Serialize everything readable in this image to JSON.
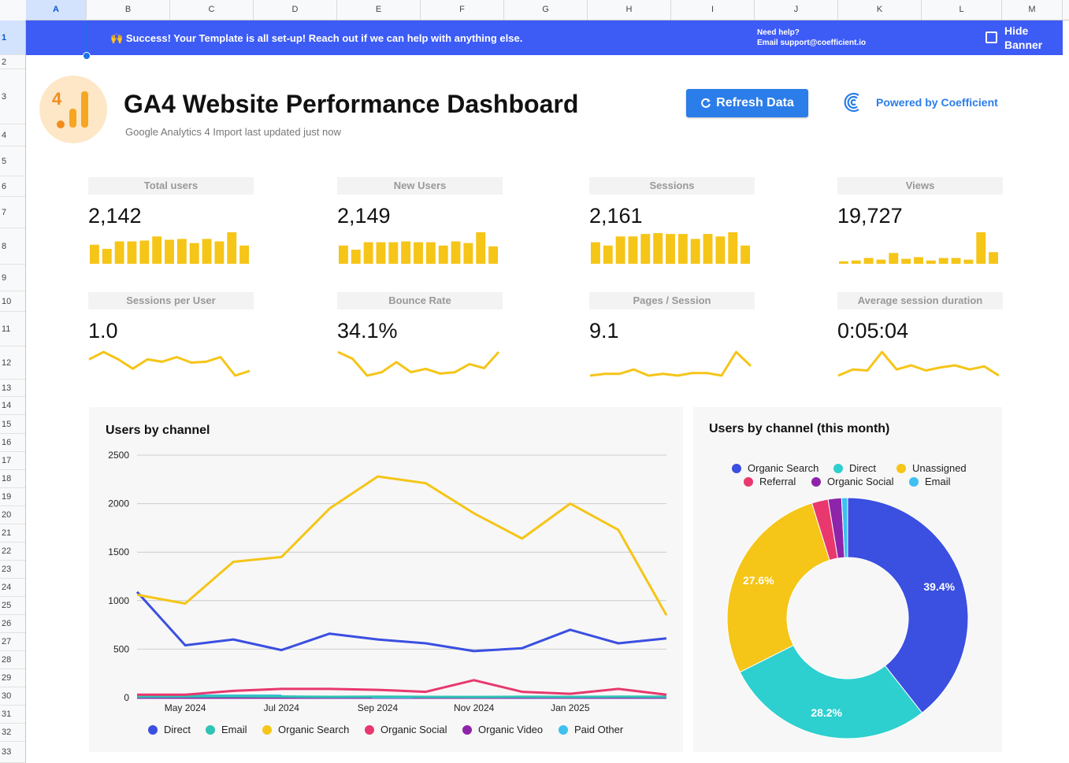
{
  "sheet": {
    "columns": [
      "A",
      "B",
      "C",
      "D",
      "E",
      "F",
      "G",
      "H",
      "I",
      "J",
      "K",
      "L",
      "M"
    ],
    "rows": [
      "1",
      "2",
      "3",
      "4",
      "5",
      "6",
      "7",
      "8",
      "9",
      "10",
      "11",
      "12",
      "13",
      "14",
      "15",
      "16",
      "17",
      "18",
      "19",
      "20",
      "21",
      "22",
      "23",
      "24",
      "25",
      "26",
      "27",
      "28",
      "29",
      "30",
      "31",
      "32",
      "33"
    ]
  },
  "banner": {
    "emoji": "🙌",
    "message": "Success! Your Template is all set-up! Reach out if we can help with anything else.",
    "help_title": "Need help?",
    "help_email": "Email support@coefficient.io",
    "hide_label_1": "Hide",
    "hide_label_2": "Banner"
  },
  "header": {
    "title": "GA4 Website Performance Dashboard",
    "subtitle": "Google Analytics 4 Import last updated just now",
    "refresh_label": "Refresh Data",
    "powered_label": "Powered by Coefficient",
    "logo_digit": "4"
  },
  "colors": {
    "accent": "#2b7de9",
    "banner": "#3d5bf5",
    "spark": "#f5c518"
  },
  "kpis": [
    {
      "label": "Total users",
      "value": "2,142",
      "type": "bar",
      "spark": [
        23,
        18,
        27,
        27,
        28,
        33,
        29,
        30,
        25,
        30,
        27,
        38,
        22
      ]
    },
    {
      "label": "New Users",
      "value": "2,149",
      "type": "bar",
      "spark": [
        22,
        17,
        26,
        26,
        26,
        27,
        26,
        26,
        22,
        27,
        25,
        38,
        21
      ]
    },
    {
      "label": "Sessions",
      "value": "2,161",
      "type": "bar",
      "spark": [
        26,
        22,
        33,
        33,
        36,
        37,
        36,
        36,
        30,
        36,
        33,
        38,
        22
      ]
    },
    {
      "label": "Views",
      "value": "19,727",
      "type": "bar",
      "spark": [
        3,
        4,
        7,
        5,
        13,
        6,
        8,
        4,
        7,
        7,
        5,
        38,
        14
      ]
    },
    {
      "label": "Sessions per User",
      "value": "1.0",
      "type": "line",
      "spark": [
        1.0,
        1.016,
        1.0,
        0.98,
        1.0,
        0.995,
        1.005,
        0.993,
        0.995,
        1.005,
        0.965,
        0.975
      ]
    },
    {
      "label": "Bounce Rate",
      "value": "34.1%",
      "type": "line",
      "spark": [
        36,
        35,
        32.5,
        33,
        34.5,
        33,
        33.5,
        32.8,
        33,
        34.2,
        33.6,
        36
      ]
    },
    {
      "label": "Pages / Session",
      "value": "9.1",
      "type": "line",
      "spark": [
        8.3,
        8.5,
        8.5,
        9.0,
        8.3,
        8.5,
        8.3,
        8.6,
        8.6,
        8.3,
        11,
        9.4
      ]
    },
    {
      "label": "Average session duration",
      "value": "0:05:04",
      "type": "line",
      "spark": [
        4.5,
        5.1,
        5.0,
        6.8,
        5.1,
        5.5,
        5.0,
        5.3,
        5.5,
        5.1,
        5.4,
        4.5
      ]
    }
  ],
  "line_chart_panel": {
    "title": "Users by channel",
    "legend": [
      {
        "label": "Direct",
        "color": "#3b4fe0"
      },
      {
        "label": "Email",
        "color": "#2ec4b6"
      },
      {
        "label": "Organic Search",
        "color": "#f5c518"
      },
      {
        "label": "Organic Social",
        "color": "#e8386d"
      },
      {
        "label": "Organic Video",
        "color": "#8e24aa"
      },
      {
        "label": "Paid Other",
        "color": "#3ec0f0"
      }
    ]
  },
  "donut_panel": {
    "title": "Users by channel (this month)",
    "legend": [
      {
        "label": "Organic Search",
        "color": "#3b4fe0"
      },
      {
        "label": "Direct",
        "color": "#2ecfcf"
      },
      {
        "label": "Unassigned",
        "color": "#f5c518"
      },
      {
        "label": "Referral",
        "color": "#e8386d"
      },
      {
        "label": "Organic Social",
        "color": "#8e24aa"
      },
      {
        "label": "Email",
        "color": "#3ec0f0"
      }
    ]
  },
  "chart_data": [
    {
      "type": "line",
      "title": "Users by channel",
      "ylim": [
        0,
        2500
      ],
      "yticks": [
        0,
        500,
        1000,
        1500,
        2000,
        2500
      ],
      "x": [
        "2024-04",
        "2024-05",
        "2024-06",
        "2024-07",
        "2024-08",
        "2024-09",
        "2024-10",
        "2024-11",
        "2024-12",
        "2025-01",
        "2025-02",
        "2025-03"
      ],
      "x_tick_labels": [
        "May 2024",
        "Jul 2024",
        "Sep 2024",
        "Nov 2024",
        "Jan 2025"
      ],
      "series": [
        {
          "name": "Direct",
          "values": [
            1090,
            540,
            600,
            490,
            660,
            600,
            560,
            480,
            510,
            700,
            560,
            610
          ]
        },
        {
          "name": "Email",
          "values": [
            10,
            12,
            15,
            12,
            8,
            10,
            8,
            7,
            9,
            8,
            10,
            9
          ]
        },
        {
          "name": "Organic Search",
          "values": [
            1060,
            970,
            1400,
            1450,
            1950,
            2280,
            2210,
            1900,
            1640,
            2000,
            1730,
            850
          ]
        },
        {
          "name": "Organic Social",
          "values": [
            30,
            30,
            70,
            90,
            90,
            80,
            60,
            180,
            60,
            40,
            90,
            30
          ]
        },
        {
          "name": "Organic Video",
          "values": [
            0,
            0,
            0,
            0,
            0,
            0,
            0,
            0,
            0,
            0,
            0,
            0
          ]
        },
        {
          "name": "Paid Other",
          "values": [
            20,
            20,
            20,
            20,
            0,
            0,
            0,
            0,
            0,
            0,
            0,
            0
          ]
        }
      ]
    },
    {
      "type": "pie",
      "title": "Users by channel (this month)",
      "labels": [
        "Organic Search",
        "Direct",
        "Unassigned",
        "Referral",
        "Organic Social",
        "Email"
      ],
      "values": [
        39.4,
        28.2,
        27.6,
        2.2,
        1.8,
        0.8
      ],
      "data_labels": [
        "39.4%",
        "28.2%",
        "27.6%",
        "",
        "",
        ""
      ]
    }
  ]
}
